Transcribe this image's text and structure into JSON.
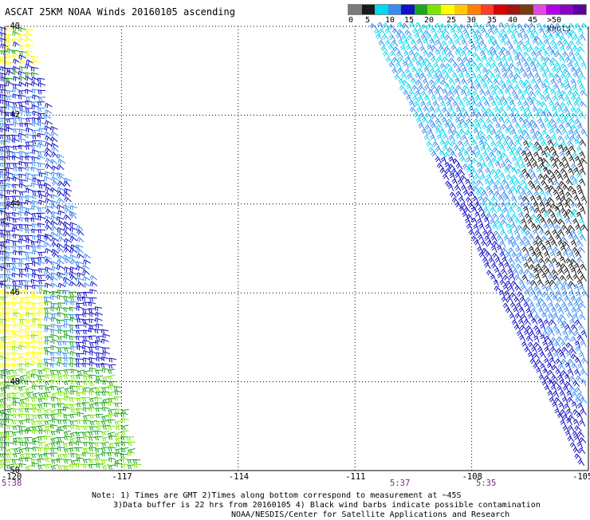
{
  "title": "ASCAT 25KM NOAA Winds 20160105 ascending",
  "legend": {
    "labels": [
      "0",
      "5",
      "10",
      "15",
      "20",
      "25",
      "30",
      "35",
      "40",
      "45",
      ">50 knots"
    ],
    "colors": [
      "#7a7a7a",
      "#1a1a1a",
      "#00d8f0",
      "#3a8cf0",
      "#1410c8",
      "#1ea51e",
      "#78e600",
      "#ffff00",
      "#ffc800",
      "#ff8000",
      "#ff3c28",
      "#dc0000",
      "#a01414",
      "#783c14",
      "#e646e6",
      "#b400e6",
      "#8c00c8",
      "#5a00a0"
    ]
  },
  "axes": {
    "lon_labels": [
      "-120",
      "-117",
      "-114",
      "-111",
      "-108",
      "-105"
    ],
    "lat_labels": [
      "-40",
      "-42",
      "-44",
      "-46",
      "-48",
      "-50"
    ],
    "lon_range": [
      -120,
      -105
    ],
    "lat_range": [
      -50,
      -40
    ]
  },
  "times": [
    "5:38",
    "5:37",
    "5:35"
  ],
  "notes": {
    "line1": "Note: 1) Times are GMT 2)Times along bottom correspond to measurement at ~45S",
    "line2": "3)Data buffer is 22 hrs from 20160105 4) Black wind barbs indicate possible contamination",
    "line3": "NOAA/NESDIS/Center for Satellite Applications and Research"
  }
}
